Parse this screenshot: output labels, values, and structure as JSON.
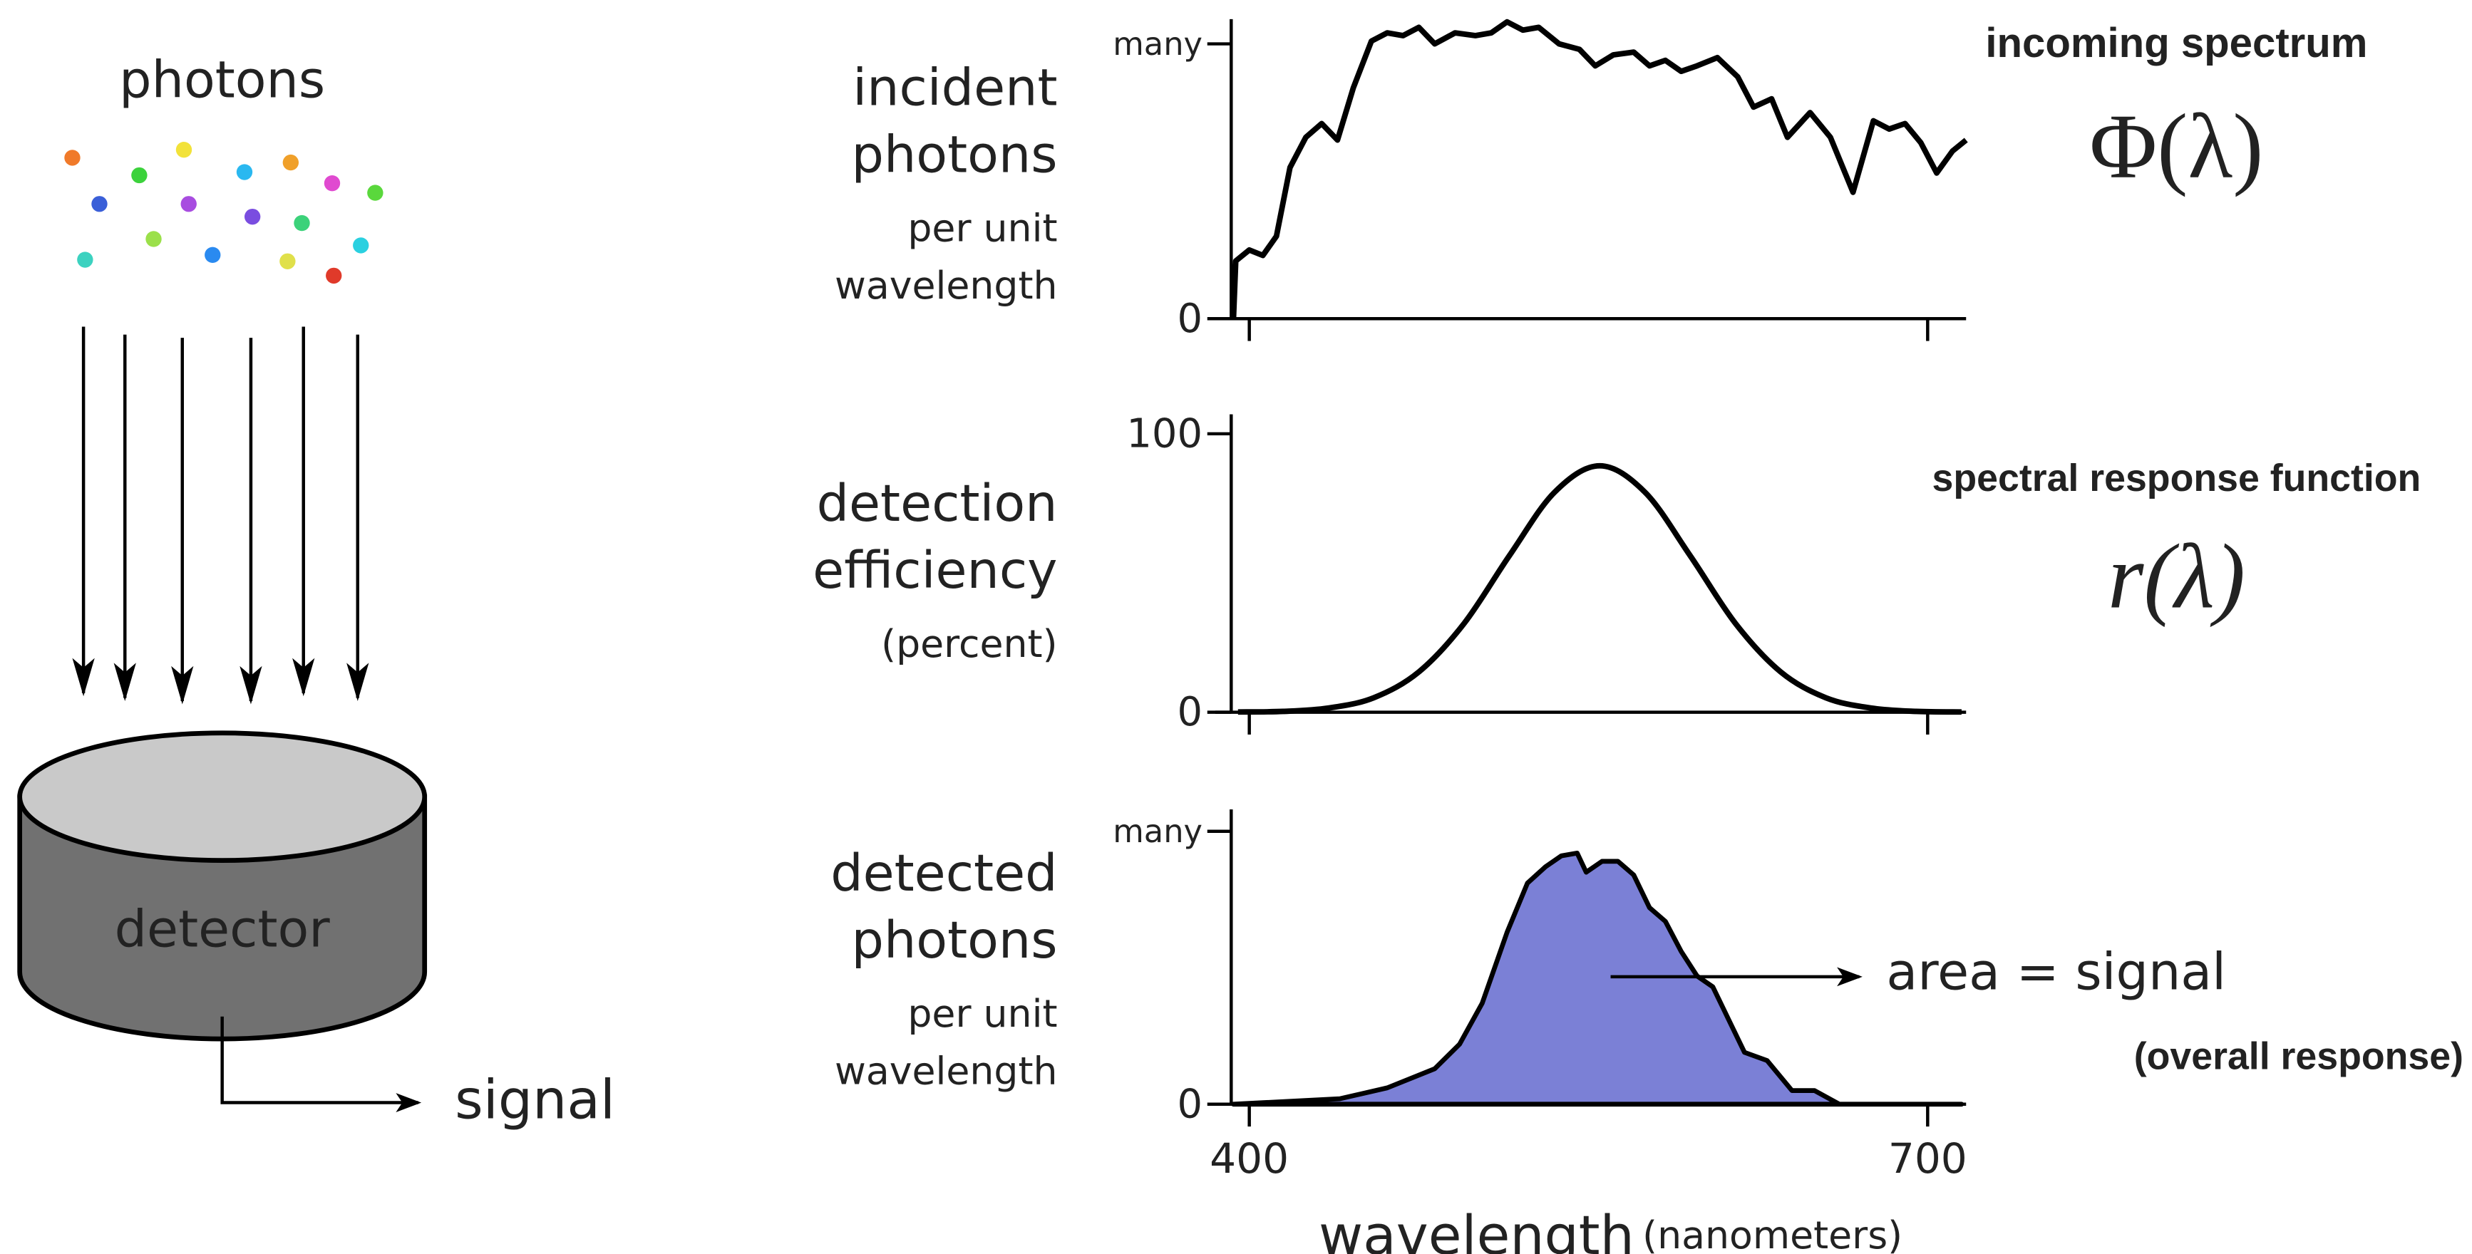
{
  "diagram": {
    "source_label": "photons",
    "detector_label": "detector",
    "output_label": "signal"
  },
  "chart_data": [
    {
      "type": "line",
      "color": "#000000",
      "ylabel": [
        "incident",
        "photons"
      ],
      "ylabel_note": [
        "per unit",
        "wavelength"
      ],
      "annotation": {
        "title": "incoming spectrum",
        "formula": "Φ(λ)"
      },
      "xlim": [
        392,
        717
      ],
      "ylim": [
        0,
        1.09
      ],
      "yticks": [
        0,
        {
          "value": 1,
          "label": "many"
        }
      ],
      "x": [
        393,
        394,
        400,
        406,
        412,
        418,
        425,
        432,
        439,
        446,
        454,
        461,
        468,
        475,
        482,
        491,
        500,
        507,
        514,
        521,
        528,
        537,
        546,
        553,
        561,
        570,
        577,
        584,
        591,
        598,
        607,
        616,
        623,
        631,
        638,
        648,
        657,
        667,
        676,
        683,
        690,
        697,
        704,
        711,
        717
      ],
      "values": [
        0,
        0.21,
        0.25,
        0.23,
        0.3,
        0.55,
        0.66,
        0.71,
        0.65,
        0.84,
        1.01,
        1.04,
        1.03,
        1.06,
        1.0,
        1.04,
        1.03,
        1.04,
        1.08,
        1.05,
        1.06,
        1.0,
        0.98,
        0.92,
        0.96,
        0.97,
        0.92,
        0.94,
        0.9,
        0.92,
        0.95,
        0.88,
        0.77,
        0.8,
        0.66,
        0.75,
        0.66,
        0.46,
        0.72,
        0.69,
        0.71,
        0.64,
        0.53,
        0.61,
        0.65
      ]
    },
    {
      "type": "curve",
      "color": "#000000",
      "ylabel": [
        "detection",
        "efficiency"
      ],
      "ylabel_note": [
        "(percent)"
      ],
      "annotation": {
        "title": "spectral response function",
        "formula": "r(λ)"
      },
      "xlim": [
        392,
        717
      ],
      "ylim": [
        0,
        107
      ],
      "yticks": [
        0,
        100
      ],
      "x": [
        395,
        415,
        435,
        455,
        475,
        495,
        515,
        535,
        555,
        575,
        595,
        615,
        635,
        655,
        675,
        695,
        715
      ],
      "values": [
        0.1,
        0.3,
        1.5,
        5.2,
        14.5,
        31.9,
        56.2,
        79.0,
        88.5,
        79.0,
        56.2,
        31.9,
        14.5,
        5.2,
        1.5,
        0.3,
        0.1
      ]
    },
    {
      "type": "area",
      "color": "#7b80d6",
      "ylabel": [
        "detected",
        "photons"
      ],
      "ylabel_note": [
        "per unit",
        "wavelength"
      ],
      "annotation": {
        "title": "area = signal",
        "note": "(overall response)"
      },
      "xlabel": "wavelength",
      "xlabel_unit": "(nanometers)",
      "xlim": [
        392,
        717
      ],
      "ylim": [
        0,
        1.08
      ],
      "yticks": [
        0,
        {
          "value": 1,
          "label": "many"
        }
      ],
      "xticks": [
        400,
        700
      ],
      "x": [
        393,
        440,
        461,
        482,
        493,
        503,
        514,
        523,
        531,
        538,
        545,
        549,
        556,
        563,
        570,
        577,
        584,
        591,
        598,
        605,
        612,
        619,
        629,
        640,
        650,
        661,
        715
      ],
      "values": [
        0,
        0.02,
        0.06,
        0.13,
        0.22,
        0.37,
        0.63,
        0.81,
        0.87,
        0.91,
        0.92,
        0.85,
        0.89,
        0.89,
        0.84,
        0.72,
        0.67,
        0.56,
        0.47,
        0.43,
        0.31,
        0.19,
        0.16,
        0.05,
        0.05,
        0,
        0
      ]
    }
  ]
}
